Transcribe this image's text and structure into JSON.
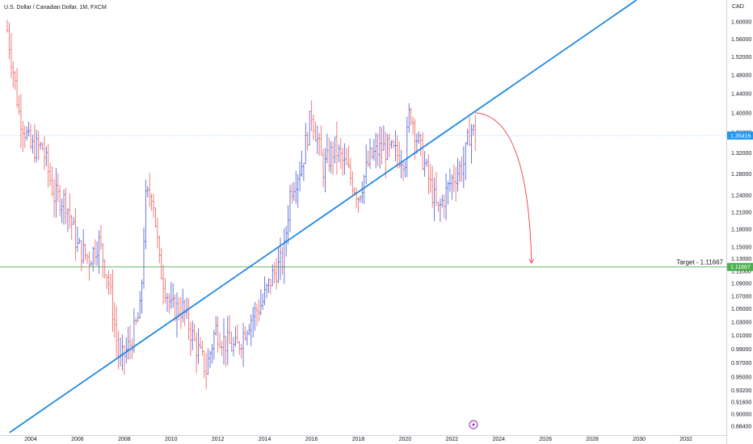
{
  "header": {
    "title": "U.S. Dollar / Canadian Dollar, 1M, FXCM",
    "currency": "CAD"
  },
  "chart_data": {
    "type": "ohlc",
    "symbol": "USDCAD",
    "interval": "1M",
    "source": "FXCM",
    "x_ticks": [
      "2004",
      "2006",
      "2008",
      "2010",
      "2012",
      "2014",
      "2016",
      "2018",
      "2020",
      "2022",
      "2024",
      "2026",
      "2028",
      "2030",
      "2032"
    ],
    "x_range": [
      2003.0,
      2034.5
    ],
    "y_ticks": [
      "1.60000",
      "1.56000",
      "1.52000",
      "1.48000",
      "1.44000",
      "1.40000",
      "1.36000",
      "1.32000",
      "1.28000",
      "1.24000",
      "1.21000",
      "1.18000",
      "1.15000",
      "1.13000",
      "1.11000",
      "1.09000",
      "1.07000",
      "1.05000",
      "1.03000",
      "1.01000",
      "0.99000",
      "0.97000",
      "0.95000",
      "0.93200",
      "0.91600",
      "0.90000",
      "0.88400"
    ],
    "y_scale": "log",
    "y_range": [
      0.875,
      1.63
    ],
    "close_points": [
      [
        2003.0,
        1.58
      ],
      [
        2003.5,
        1.4
      ],
      [
        2004.0,
        1.33
      ],
      [
        2004.5,
        1.33
      ],
      [
        2005.0,
        1.24
      ],
      [
        2005.5,
        1.23
      ],
      [
        2006.0,
        1.15
      ],
      [
        2006.5,
        1.13
      ],
      [
        2006.9,
        1.16
      ],
      [
        2007.3,
        1.1
      ],
      [
        2007.8,
        0.97
      ],
      [
        2008.3,
        1.0
      ],
      [
        2008.7,
        1.05
      ],
      [
        2008.9,
        1.23
      ],
      [
        2009.2,
        1.25
      ],
      [
        2009.5,
        1.12
      ],
      [
        2010.0,
        1.05
      ],
      [
        2010.5,
        1.05
      ],
      [
        2011.0,
        1.0
      ],
      [
        2011.5,
        0.96
      ],
      [
        2011.9,
        1.02
      ],
      [
        2012.3,
        1.0
      ],
      [
        2012.8,
        0.99
      ],
      [
        2013.3,
        1.03
      ],
      [
        2013.9,
        1.06
      ],
      [
        2014.3,
        1.1
      ],
      [
        2014.8,
        1.13
      ],
      [
        2015.1,
        1.25
      ],
      [
        2015.6,
        1.3
      ],
      [
        2016.0,
        1.4
      ],
      [
        2016.5,
        1.29
      ],
      [
        2017.0,
        1.33
      ],
      [
        2017.5,
        1.29
      ],
      [
        2018.0,
        1.24
      ],
      [
        2018.5,
        1.31
      ],
      [
        2019.0,
        1.33
      ],
      [
        2019.5,
        1.32
      ],
      [
        2020.0,
        1.31
      ],
      [
        2020.2,
        1.41
      ],
      [
        2020.5,
        1.35
      ],
      [
        2021.0,
        1.27
      ],
      [
        2021.4,
        1.21
      ],
      [
        2022.0,
        1.27
      ],
      [
        2022.5,
        1.3
      ],
      [
        2022.8,
        1.37
      ],
      [
        2023.0,
        1.35416
      ]
    ],
    "last_price": "1.35416",
    "trendline": {
      "points": [
        [
          2003.1,
          0.876
        ],
        [
          2022.9,
          1.4
        ]
      ],
      "color": "#1e88e5"
    },
    "projection": {
      "from": [
        2023.0,
        1.4
      ],
      "to": [
        2025.4,
        1.11667
      ],
      "color": "#f23645"
    },
    "target": {
      "label": "Target - 1.11667",
      "value": 1.11667,
      "price_tag": "1.11667",
      "color": "#4caf50"
    },
    "colors": {
      "up": "#5b6bd9",
      "down": "#ef6f6f",
      "last_price": "#2196f3"
    },
    "grid": false,
    "legend": "none"
  }
}
